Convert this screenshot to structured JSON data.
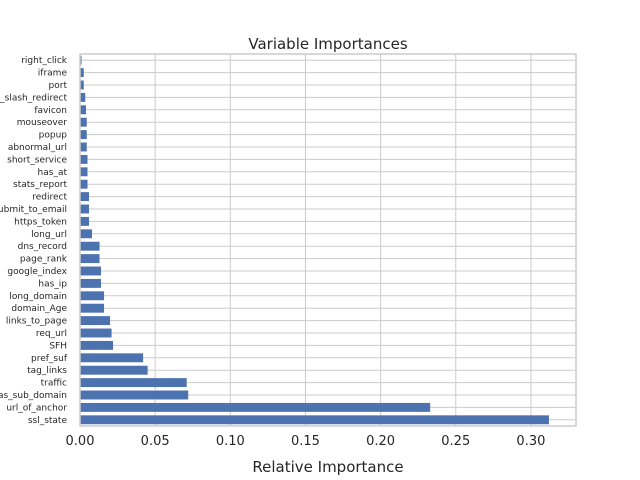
{
  "chart_data": {
    "type": "bar",
    "orientation": "horizontal",
    "title": "Variable Importances",
    "xlabel": "Relative Importance",
    "ylabel": "",
    "xlim": [
      0,
      0.33
    ],
    "xticks": [
      "0.00",
      "0.05",
      "0.10",
      "0.15",
      "0.20",
      "0.25",
      "0.30"
    ],
    "grid": true,
    "bar_color": "#4c72b0",
    "categories": [
      "ssl_state",
      "url_of_anchor",
      "has_sub_domain",
      "traffic",
      "tag_links",
      "pref_suf",
      "SFH",
      "req_url",
      "links_to_page",
      "domain_Age",
      "long_domain",
      "has_ip",
      "google_index",
      "page_rank",
      "dns_record",
      "long_url",
      "https_token",
      "submit_to_email",
      "redirect",
      "stats_report",
      "has_at",
      "short_service",
      "abnormal_url",
      "popup",
      "mouseover",
      "favicon",
      "double_slash_redirect",
      "port",
      "iframe",
      "right_click"
    ],
    "values": [
      0.312,
      0.233,
      0.072,
      0.071,
      0.045,
      0.042,
      0.022,
      0.021,
      0.02,
      0.016,
      0.016,
      0.014,
      0.014,
      0.013,
      0.013,
      0.008,
      0.006,
      0.006,
      0.006,
      0.005,
      0.005,
      0.005,
      0.0045,
      0.0045,
      0.0045,
      0.004,
      0.0035,
      0.0025,
      0.0025,
      0.001
    ]
  }
}
